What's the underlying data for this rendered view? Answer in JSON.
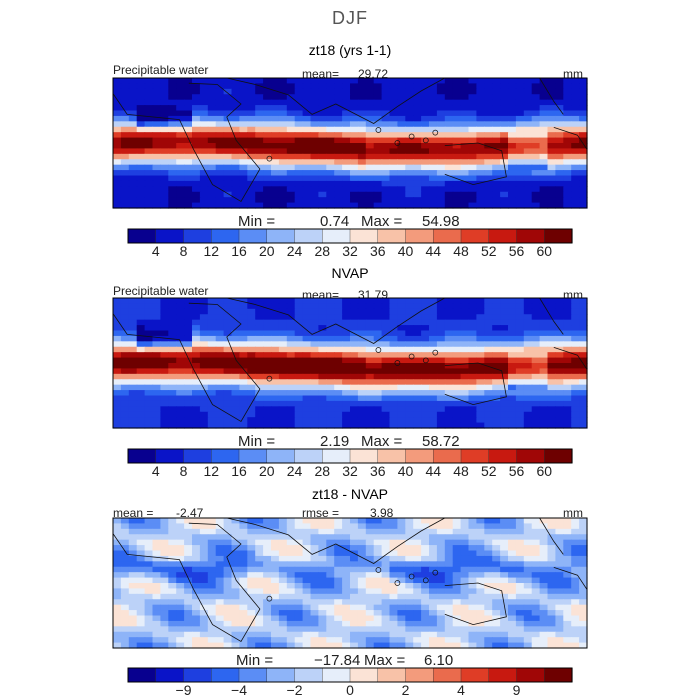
{
  "page": {
    "season": "DJF",
    "colors": [
      "#08008f",
      "#0a14c8",
      "#1e3fe0",
      "#2d66f0",
      "#5b8df5",
      "#8eb4f8",
      "#bcd2f8",
      "#e6eefa",
      "#fbe3d6",
      "#f8c2a8",
      "#f39b7c",
      "#ea6b4d",
      "#df3d26",
      "#c81910",
      "#a00606",
      "#6e0000"
    ],
    "diff_colors": [
      "#08008f",
      "#0a14c8",
      "#1e3fe0",
      "#2d66f0",
      "#5b8df5",
      "#8eb4f8",
      "#bcd2f8",
      "#e6eefa",
      "#fbe3d6",
      "#f8c2a8",
      "#f39b7c",
      "#ea6b4d",
      "#df3d26",
      "#c81910",
      "#a00606",
      "#6e0000"
    ]
  },
  "chart_data": [
    {
      "type": "heatmap",
      "panel_title": "zt18 (yrs 1-1)",
      "field_label": "Precipitable water",
      "stat_label": "mean=",
      "stat_value": "29.72",
      "units": "mm",
      "min_label": "Min =",
      "min_value": "0.74",
      "max_label": "Max =",
      "max_value": "54.98",
      "colorbar_ticks": [
        "4",
        "8",
        "12",
        "16",
        "20",
        "24",
        "28",
        "32",
        "36",
        "40",
        "44",
        "48",
        "52",
        "56",
        "60"
      ],
      "value_range": [
        0,
        64
      ]
    },
    {
      "type": "heatmap",
      "panel_title": "NVAP",
      "field_label": "Precipitable water",
      "stat_label": "mean=",
      "stat_value": "31.79",
      "units": "mm",
      "min_label": "Min =",
      "min_value": "2.19",
      "max_label": "Max =",
      "max_value": "58.72",
      "colorbar_ticks": [
        "4",
        "8",
        "12",
        "16",
        "20",
        "24",
        "28",
        "32",
        "36",
        "40",
        "44",
        "48",
        "52",
        "56",
        "60"
      ],
      "value_range": [
        0,
        64
      ]
    },
    {
      "type": "heatmap",
      "panel_title": "zt18 - NVAP",
      "mean_label": "mean =",
      "mean_value": "-2.47",
      "rmse_label": "rmse =",
      "rmse_value": "3.98",
      "units": "mm",
      "min_label": "Min =",
      "min_value": "−17.84",
      "max_label": "Max =",
      "max_value": "6.10",
      "colorbar_ticks": [
        "−9",
        "−4",
        "−2",
        "0",
        "2",
        "4",
        "9"
      ],
      "value_range": [
        -12,
        12
      ]
    }
  ]
}
